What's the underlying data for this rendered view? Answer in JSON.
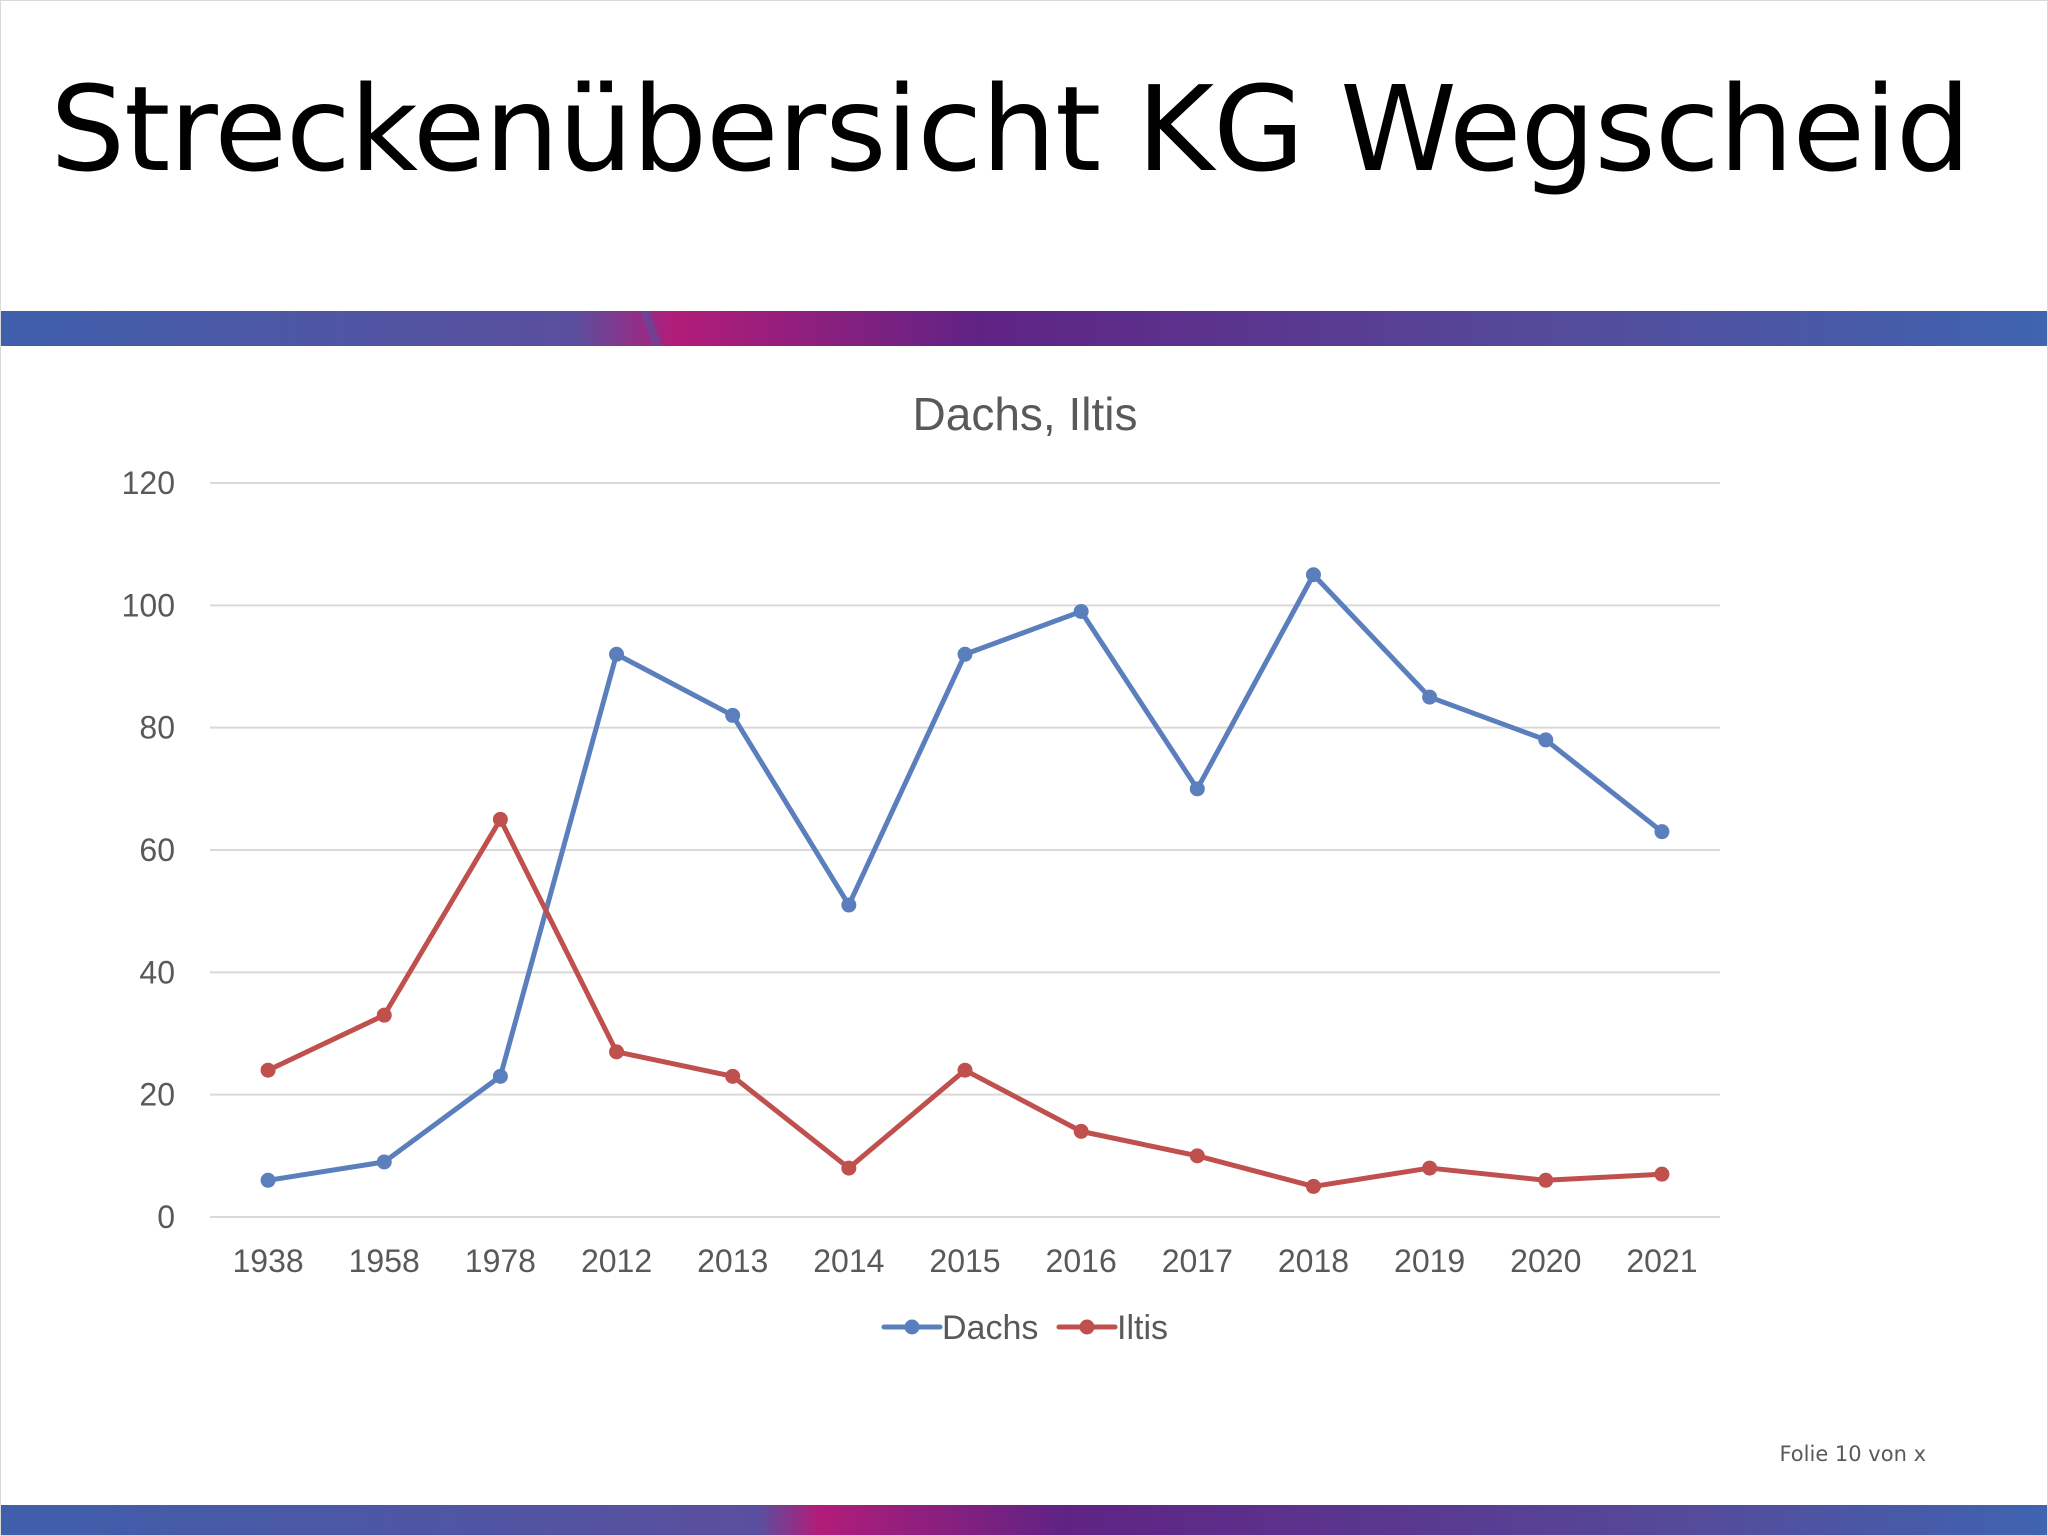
{
  "slide": {
    "title": "Streckenübersicht KG Wegscheid",
    "footer": "Folie 10 von x"
  },
  "colors": {
    "band_blue": "#3c5ca8",
    "band_magenta": "#b01d7a",
    "band_purple": "#5e2a86",
    "grid": "#d9d9d9",
    "text": "#595959"
  },
  "chart_data": {
    "type": "line",
    "title": "Dachs, Iltis",
    "categories": [
      "1938",
      "1958",
      "1978",
      "2012",
      "2013",
      "2014",
      "2015",
      "2016",
      "2017",
      "2018",
      "2019",
      "2020",
      "2021"
    ],
    "series": [
      {
        "name": "Dachs",
        "color": "#5b7fbd",
        "values": [
          6,
          9,
          23,
          92,
          82,
          51,
          92,
          99,
          70,
          105,
          85,
          78,
          63
        ]
      },
      {
        "name": "Iltis",
        "color": "#bf504d",
        "values": [
          24,
          33,
          65,
          27,
          23,
          8,
          24,
          14,
          10,
          5,
          8,
          6,
          7
        ]
      }
    ],
    "ylim": [
      0,
      120
    ],
    "yticks": [
      "0",
      "20",
      "40",
      "60",
      "80",
      "100",
      "120"
    ],
    "grid": true,
    "legend_position": "bottom"
  }
}
